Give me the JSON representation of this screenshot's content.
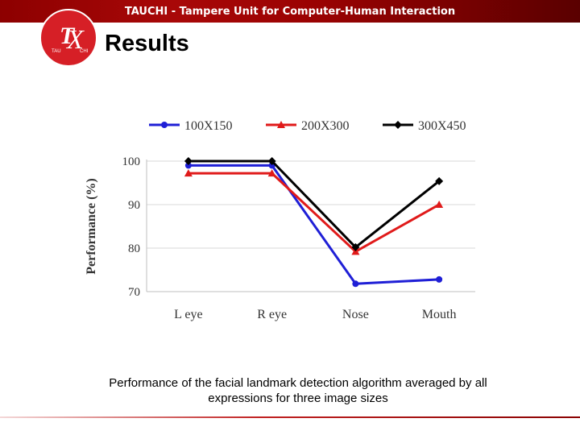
{
  "header": {
    "banner_text": "TAUCHI - Tampere Unit for Computer-Human Interaction",
    "logo": {
      "letters": "TCX",
      "sub_left": "TAU",
      "sub_right": "CHI",
      "color": "#d61f26"
    }
  },
  "slide": {
    "title": "Results",
    "caption_line1": "Performance of the facial landmark detection algorithm averaged by all",
    "caption_line2": "expressions for three image sizes"
  },
  "chart_data": {
    "type": "line",
    "categories": [
      "L eye",
      "R eye",
      "Nose",
      "Mouth"
    ],
    "ylabel": "Performance (%)",
    "ylim": [
      70,
      100
    ],
    "yticks": [
      70,
      80,
      90,
      100
    ],
    "grid": true,
    "legend": "top",
    "series": [
      {
        "name": "100X150",
        "values": [
          99,
          99,
          71.8,
          72.8
        ],
        "color": "#1f1fd6",
        "marker": "circle"
      },
      {
        "name": "200X300",
        "values": [
          97.2,
          97.2,
          79.2,
          90
        ],
        "color": "#e01a1a",
        "marker": "triangle"
      },
      {
        "name": "300X450",
        "values": [
          100,
          100,
          80.2,
          95.4
        ],
        "color": "#000000",
        "marker": "diamond"
      }
    ]
  }
}
